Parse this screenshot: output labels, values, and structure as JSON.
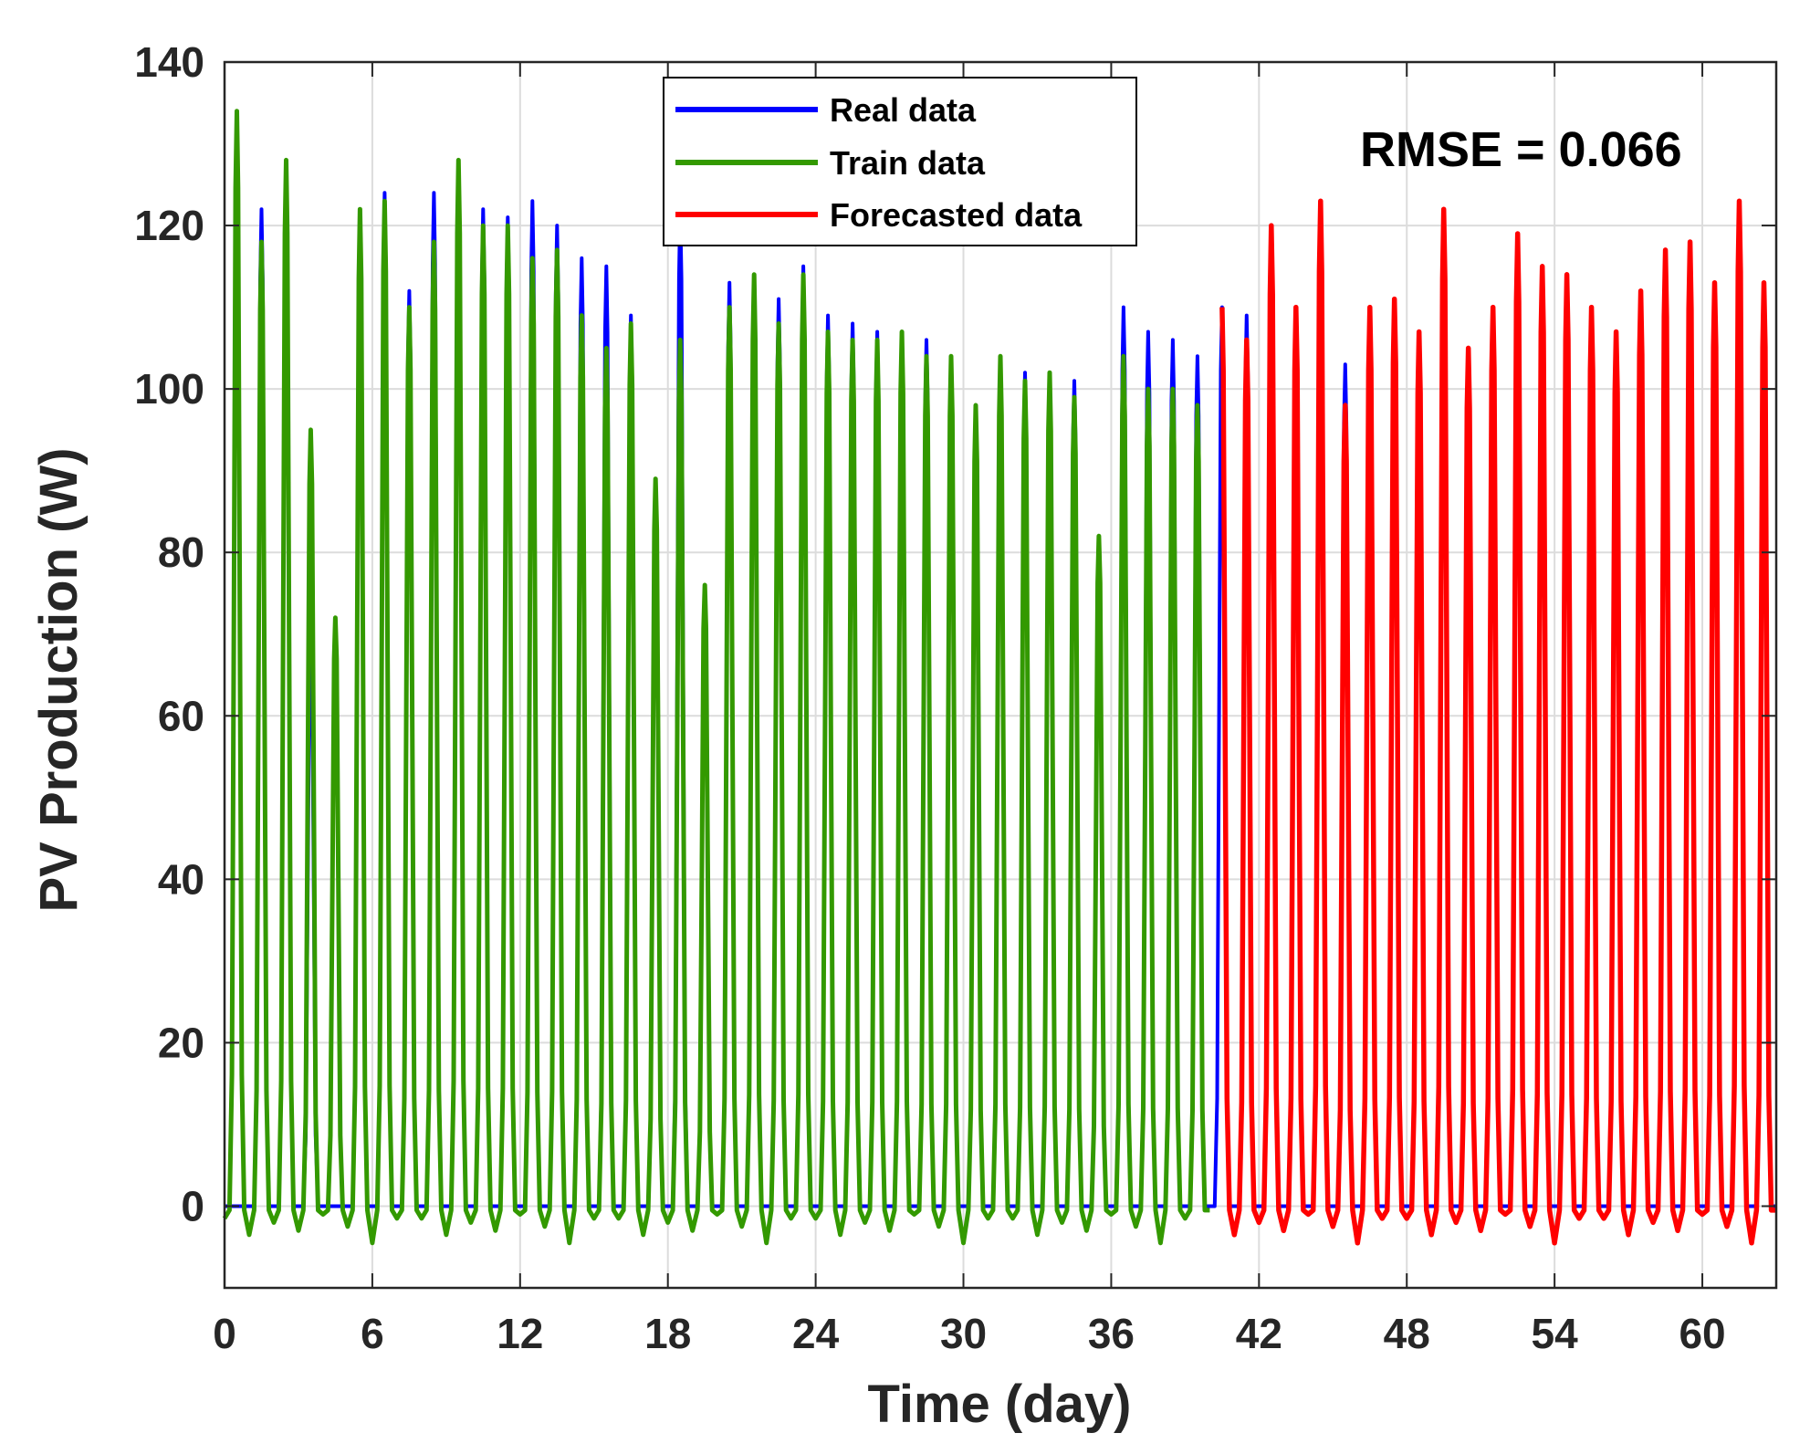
{
  "chart_data": {
    "type": "line",
    "xlabel": "Time (day)",
    "ylabel": "PV Production (W)",
    "xlim": [
      0,
      63
    ],
    "ylim": [
      -10,
      140
    ],
    "xticks": [
      0,
      6,
      12,
      18,
      24,
      30,
      36,
      42,
      48,
      54,
      60
    ],
    "yticks": [
      0,
      20,
      40,
      60,
      80,
      100,
      120,
      140
    ],
    "grid": true,
    "legend_position": "top-center",
    "annotation": "RMSE = 0.066",
    "split_day": 40.5,
    "colors": {
      "real": "#0000ff",
      "train": "#339900",
      "forecast": "#ff0000"
    },
    "series": [
      {
        "name": "Real data",
        "daily_peaks": [
          0,
          122,
          127,
          72,
          0,
          122,
          124,
          112,
          124,
          127,
          122,
          121,
          123,
          120,
          116,
          115,
          109,
          89,
          122,
          75,
          113,
          114,
          111,
          115,
          109,
          108,
          107,
          107,
          106,
          104,
          98,
          104,
          102,
          102,
          101,
          81,
          110,
          107,
          106,
          104,
          110,
          109,
          120,
          110,
          123,
          103,
          110,
          111,
          107,
          122,
          105,
          110,
          119,
          115,
          114,
          110,
          107,
          112,
          117,
          118,
          113,
          123,
          113
        ]
      },
      {
        "name": "Train data",
        "daily_peaks": [
          134,
          118,
          128,
          95,
          72,
          122,
          123,
          110,
          118,
          128,
          120,
          120,
          116,
          117,
          109,
          105,
          108,
          89,
          106,
          76,
          110,
          114,
          108,
          114,
          107,
          106,
          106,
          107,
          104,
          104,
          98,
          104,
          101,
          102,
          99,
          82,
          104,
          100,
          100,
          98
        ]
      },
      {
        "name": "Forecasted data",
        "daily_peaks": [
          110,
          106,
          120,
          110,
          123,
          98,
          110,
          111,
          107,
          122,
          105,
          110,
          119,
          115,
          114,
          110,
          107,
          112,
          117,
          118,
          113,
          123,
          113
        ]
      }
    ]
  }
}
